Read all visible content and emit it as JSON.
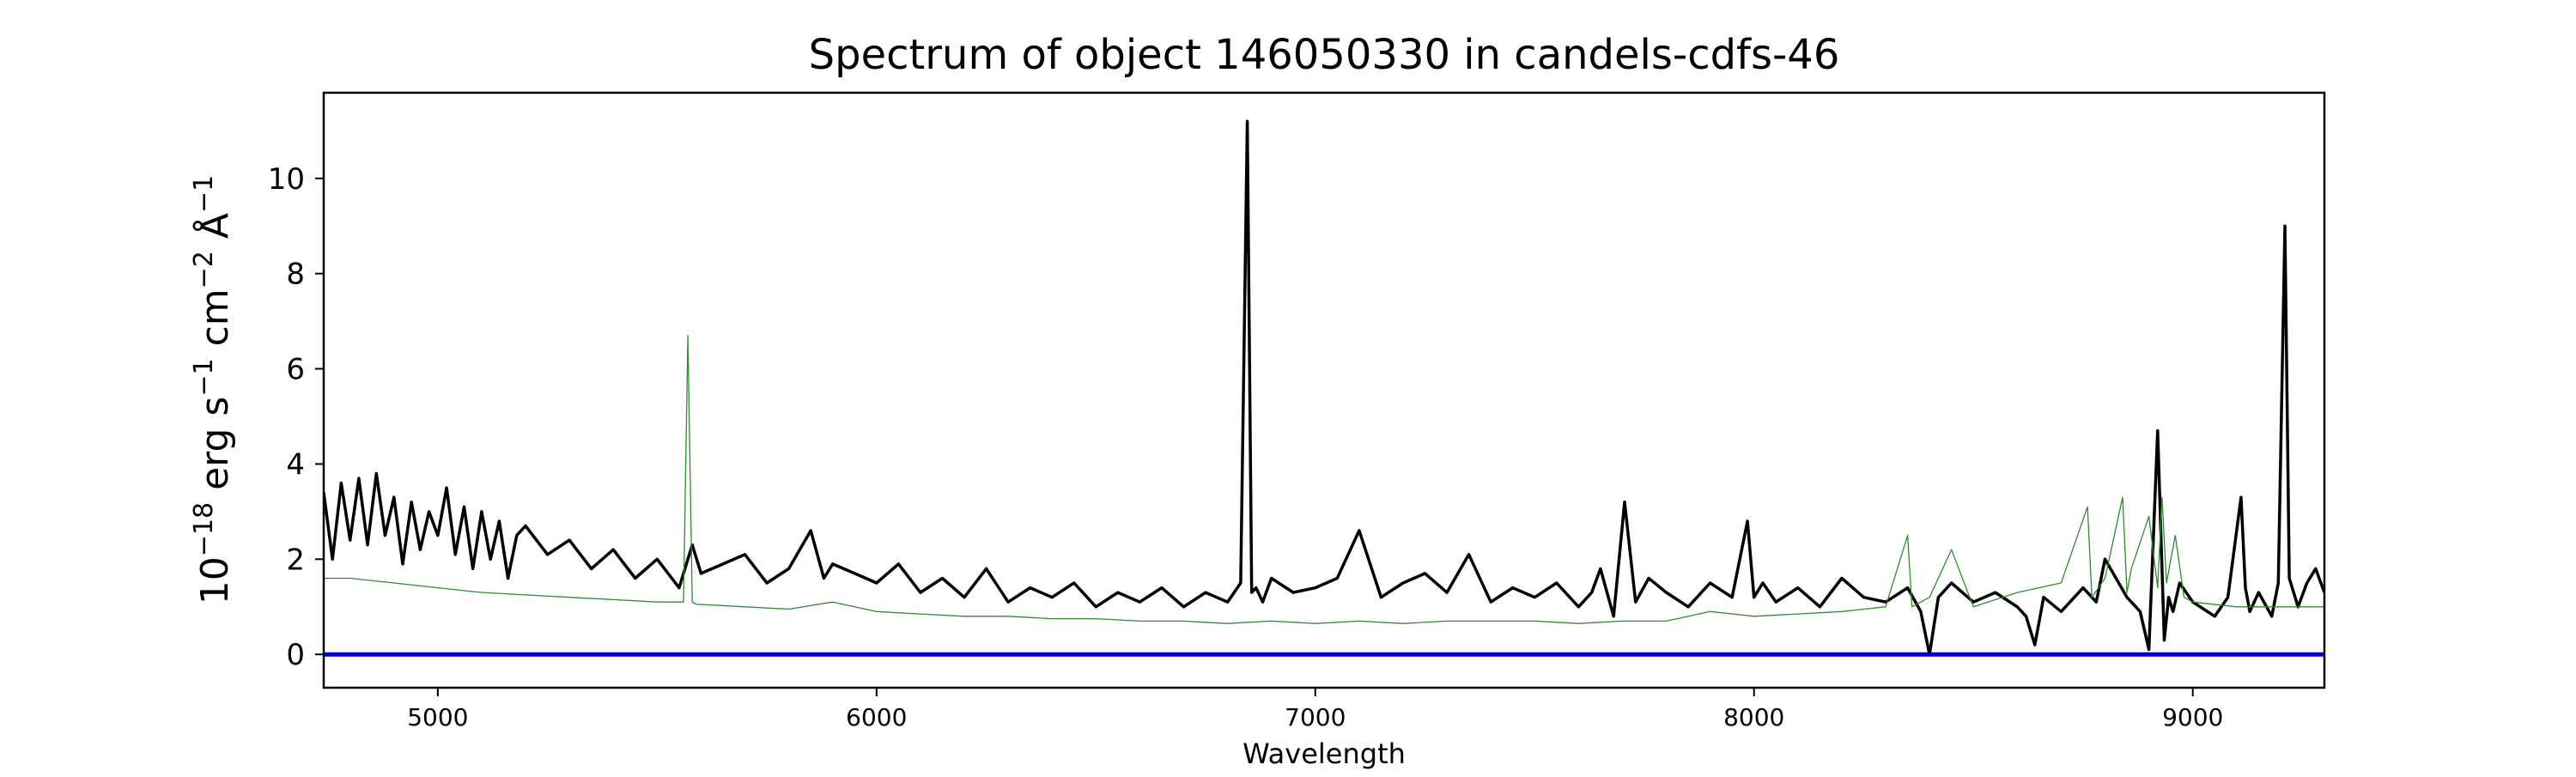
{
  "chart_data": {
    "type": "line",
    "title": "Spectrum of object 146050330 in candels-cdfs-46",
    "xlabel": "Wavelength",
    "ylabel": {
      "base": "10",
      "exp": "−18",
      "erg": " erg s",
      "s_exp": "−1",
      "cm": " cm",
      "cm_exp": "−2",
      "unit": " Å",
      "unit_exp": "−1"
    },
    "xlim": [
      4740,
      9300
    ],
    "ylim": [
      -0.7,
      11.8
    ],
    "xticks": [
      5000,
      6000,
      7000,
      8000,
      9000
    ],
    "xtick_labels": [
      "5000",
      "6000",
      "7000",
      "8000",
      "9000"
    ],
    "yticks": [
      0,
      2,
      4,
      6,
      8,
      10
    ],
    "ytick_labels": [
      "0",
      "2",
      "4",
      "6",
      "8",
      "10"
    ],
    "grid": false,
    "legend": "none",
    "series": [
      {
        "color": "#000000",
        "x": [
          4740,
          4760,
          4780,
          4800,
          4820,
          4840,
          4860,
          4880,
          4900,
          4920,
          4940,
          4960,
          4980,
          5000,
          5020,
          5040,
          5060,
          5080,
          5100,
          5120,
          5140,
          5160,
          5180,
          5200,
          5250,
          5300,
          5350,
          5400,
          5450,
          5500,
          5550,
          5580,
          5600,
          5650,
          5700,
          5750,
          5800,
          5850,
          5880,
          5900,
          5950,
          6000,
          6050,
          6100,
          6150,
          6200,
          6250,
          6300,
          6350,
          6400,
          6450,
          6500,
          6550,
          6600,
          6650,
          6700,
          6750,
          6800,
          6830,
          6845,
          6855,
          6865,
          6880,
          6900,
          6950,
          7000,
          7050,
          7100,
          7150,
          7200,
          7250,
          7300,
          7350,
          7400,
          7450,
          7500,
          7550,
          7600,
          7630,
          7650,
          7680,
          7705,
          7730,
          7760,
          7800,
          7850,
          7900,
          7950,
          7985,
          8000,
          8020,
          8050,
          8100,
          8150,
          8200,
          8250,
          8300,
          8350,
          8380,
          8400,
          8420,
          8450,
          8500,
          8550,
          8600,
          8620,
          8640,
          8660,
          8700,
          8750,
          8780,
          8800,
          8850,
          8880,
          8900,
          8920,
          8935,
          8945,
          8955,
          8970,
          9000,
          9050,
          9080,
          9110,
          9120,
          9130,
          9150,
          9180,
          9195,
          9210,
          9220,
          9240,
          9260,
          9280,
          9300
        ],
        "y": [
          3.4,
          2.0,
          3.6,
          2.4,
          3.7,
          2.3,
          3.8,
          2.5,
          3.3,
          1.9,
          3.2,
          2.2,
          3.0,
          2.5,
          3.5,
          2.1,
          3.1,
          1.8,
          3.0,
          2.0,
          2.8,
          1.6,
          2.5,
          2.7,
          2.1,
          2.4,
          1.8,
          2.2,
          1.6,
          2.0,
          1.4,
          2.3,
          1.7,
          1.9,
          2.1,
          1.5,
          1.8,
          2.6,
          1.6,
          1.9,
          1.7,
          1.5,
          1.9,
          1.3,
          1.6,
          1.2,
          1.8,
          1.1,
          1.4,
          1.2,
          1.5,
          1.0,
          1.3,
          1.1,
          1.4,
          1.0,
          1.3,
          1.1,
          1.5,
          11.2,
          1.3,
          1.4,
          1.1,
          1.6,
          1.3,
          1.4,
          1.6,
          2.6,
          1.2,
          1.5,
          1.7,
          1.3,
          2.1,
          1.1,
          1.4,
          1.2,
          1.5,
          1.0,
          1.3,
          1.8,
          0.8,
          3.2,
          1.1,
          1.6,
          1.3,
          1.0,
          1.5,
          1.2,
          2.8,
          1.2,
          1.5,
          1.1,
          1.4,
          1.0,
          1.6,
          1.2,
          1.1,
          1.4,
          0.9,
          0.0,
          1.2,
          1.5,
          1.1,
          1.3,
          1.0,
          0.8,
          0.2,
          1.2,
          0.9,
          1.4,
          1.1,
          2.0,
          1.2,
          0.9,
          0.1,
          4.7,
          0.3,
          1.2,
          0.9,
          1.5,
          1.1,
          0.8,
          1.2,
          3.3,
          1.4,
          0.9,
          1.3,
          0.8,
          1.5,
          9.0,
          1.6,
          1.0,
          1.5,
          1.8,
          1.3
        ]
      },
      {
        "color": "#2e8b2e",
        "x": [
          4740,
          4800,
          4900,
          5000,
          5100,
          5200,
          5300,
          5400,
          5500,
          5560,
          5570,
          5580,
          5590,
          5600,
          5700,
          5800,
          5900,
          6000,
          6100,
          6200,
          6300,
          6400,
          6500,
          6600,
          6700,
          6800,
          6900,
          7000,
          7100,
          7200,
          7300,
          7400,
          7500,
          7600,
          7700,
          7800,
          7900,
          8000,
          8100,
          8200,
          8300,
          8350,
          8360,
          8400,
          8450,
          8500,
          8600,
          8700,
          8760,
          8770,
          8800,
          8840,
          8850,
          8860,
          8900,
          8920,
          8930,
          8940,
          8960,
          8980,
          9000,
          9100,
          9200,
          9300
        ],
        "y": [
          1.6,
          1.6,
          1.5,
          1.4,
          1.3,
          1.25,
          1.2,
          1.15,
          1.1,
          1.1,
          6.7,
          1.1,
          1.05,
          1.05,
          1.0,
          0.95,
          1.1,
          0.9,
          0.85,
          0.8,
          0.8,
          0.75,
          0.75,
          0.7,
          0.7,
          0.65,
          0.7,
          0.65,
          0.7,
          0.65,
          0.7,
          0.7,
          0.7,
          0.65,
          0.7,
          0.7,
          0.9,
          0.8,
          0.85,
          0.9,
          1.0,
          2.5,
          1.0,
          1.2,
          2.2,
          1.0,
          1.3,
          1.5,
          3.1,
          1.2,
          1.6,
          3.3,
          1.3,
          1.8,
          2.9,
          1.4,
          3.3,
          1.5,
          2.5,
          1.2,
          1.1,
          1.0,
          1.0,
          1.0
        ]
      },
      {
        "color": "#0000cc",
        "x": [
          4740,
          9300
        ],
        "y": [
          0,
          0
        ]
      }
    ]
  }
}
